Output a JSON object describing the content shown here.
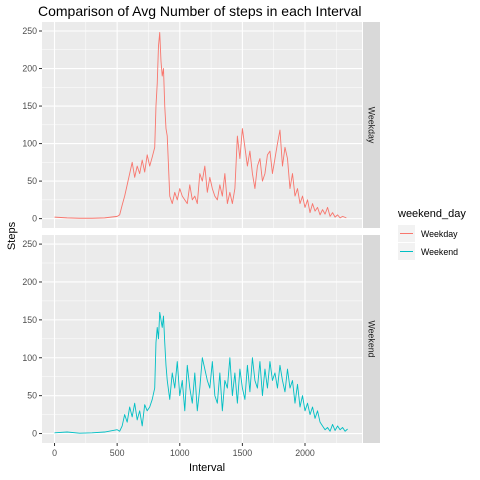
{
  "chart_data": {
    "type": "line",
    "title": "Comparison of Avg Number of steps in each Interval",
    "xlabel": "Interval",
    "ylabel": "Steps",
    "xlim": [
      -100,
      2455
    ],
    "ylim": [
      -12.5,
      262
    ],
    "x_ticks": [
      0,
      500,
      1000,
      1500,
      2000
    ],
    "y_ticks": [
      0,
      50,
      100,
      150,
      200,
      250
    ],
    "facet_by": "weekend_day",
    "legend": {
      "title": "weekend_day",
      "position": "right",
      "entries": [
        {
          "label": "Weekday",
          "color": "#F8766D"
        },
        {
          "label": "Weekend",
          "color": "#00BFC4"
        }
      ]
    },
    "grid": true,
    "panel_background": "#EBEBEB",
    "strip_background": "#D9D9D9",
    "series": [
      {
        "name": "Weekday",
        "color": "#F8766D",
        "x": [
          0,
          100,
          200,
          300,
          400,
          500,
          520,
          540,
          560,
          580,
          600,
          620,
          640,
          660,
          680,
          700,
          720,
          740,
          760,
          780,
          800,
          810,
          820,
          830,
          840,
          850,
          860,
          870,
          880,
          890,
          900,
          920,
          940,
          960,
          980,
          1000,
          1020,
          1040,
          1060,
          1080,
          1100,
          1120,
          1140,
          1160,
          1180,
          1200,
          1220,
          1240,
          1260,
          1280,
          1300,
          1320,
          1340,
          1360,
          1380,
          1400,
          1420,
          1440,
          1460,
          1480,
          1500,
          1520,
          1540,
          1560,
          1580,
          1600,
          1620,
          1640,
          1660,
          1680,
          1700,
          1720,
          1740,
          1760,
          1780,
          1800,
          1820,
          1840,
          1860,
          1880,
          1900,
          1920,
          1940,
          1960,
          1980,
          2000,
          2020,
          2040,
          2060,
          2080,
          2100,
          2120,
          2140,
          2160,
          2180,
          2200,
          2220,
          2240,
          2260,
          2280,
          2300,
          2330
        ],
        "y": [
          2,
          1,
          0.5,
          0.5,
          1,
          3,
          5,
          18,
          30,
          45,
          60,
          75,
          55,
          70,
          60,
          78,
          62,
          85,
          70,
          82,
          95,
          150,
          180,
          230,
          248,
          210,
          190,
          200,
          150,
          120,
          110,
          30,
          20,
          35,
          25,
          40,
          30,
          25,
          20,
          45,
          25,
          30,
          20,
          60,
          50,
          70,
          35,
          55,
          40,
          30,
          25,
          45,
          30,
          60,
          20,
          35,
          20,
          40,
          110,
          80,
          120,
          95,
          70,
          90,
          60,
          40,
          70,
          80,
          50,
          60,
          85,
          90,
          60,
          80,
          100,
          118,
          70,
          95,
          80,
          40,
          60,
          30,
          40,
          20,
          30,
          15,
          25,
          8,
          20,
          10,
          15,
          5,
          12,
          6,
          15,
          3,
          8,
          2,
          5,
          1,
          3,
          1
        ]
      },
      {
        "name": "Weekend",
        "color": "#00BFC4",
        "x": [
          0,
          100,
          200,
          300,
          400,
          500,
          520,
          540,
          560,
          580,
          600,
          620,
          640,
          660,
          680,
          700,
          720,
          740,
          760,
          780,
          800,
          810,
          820,
          830,
          840,
          850,
          860,
          870,
          880,
          890,
          900,
          920,
          940,
          960,
          980,
          1000,
          1020,
          1040,
          1060,
          1080,
          1100,
          1120,
          1140,
          1160,
          1180,
          1200,
          1220,
          1240,
          1260,
          1280,
          1300,
          1320,
          1340,
          1360,
          1380,
          1400,
          1420,
          1440,
          1460,
          1480,
          1500,
          1520,
          1540,
          1560,
          1580,
          1600,
          1620,
          1640,
          1660,
          1680,
          1700,
          1720,
          1740,
          1760,
          1780,
          1800,
          1820,
          1840,
          1860,
          1880,
          1900,
          1920,
          1940,
          1960,
          1980,
          2000,
          2020,
          2040,
          2060,
          2080,
          2100,
          2120,
          2140,
          2160,
          2180,
          2200,
          2220,
          2240,
          2260,
          2280,
          2300,
          2320,
          2340
        ],
        "y": [
          1,
          2,
          0.5,
          1,
          2,
          5,
          3,
          10,
          25,
          15,
          35,
          22,
          40,
          18,
          30,
          10,
          38,
          30,
          35,
          45,
          60,
          120,
          140,
          125,
          160,
          150,
          140,
          155,
          120,
          90,
          70,
          45,
          80,
          60,
          95,
          50,
          70,
          30,
          90,
          60,
          40,
          80,
          30,
          60,
          100,
          85,
          70,
          60,
          95,
          50,
          40,
          80,
          30,
          70,
          60,
          100,
          50,
          80,
          40,
          85,
          60,
          45,
          90,
          55,
          100,
          70,
          60,
          95,
          50,
          85,
          60,
          95,
          70,
          80,
          60,
          90,
          70,
          55,
          85,
          60,
          70,
          40,
          65,
          35,
          50,
          30,
          40,
          25,
          35,
          20,
          30,
          15,
          10,
          5,
          8,
          3,
          12,
          4,
          10,
          5,
          8,
          3,
          6
        ]
      }
    ],
    "facets": [
      {
        "label": "Weekday"
      },
      {
        "label": "Weekend"
      }
    ]
  }
}
